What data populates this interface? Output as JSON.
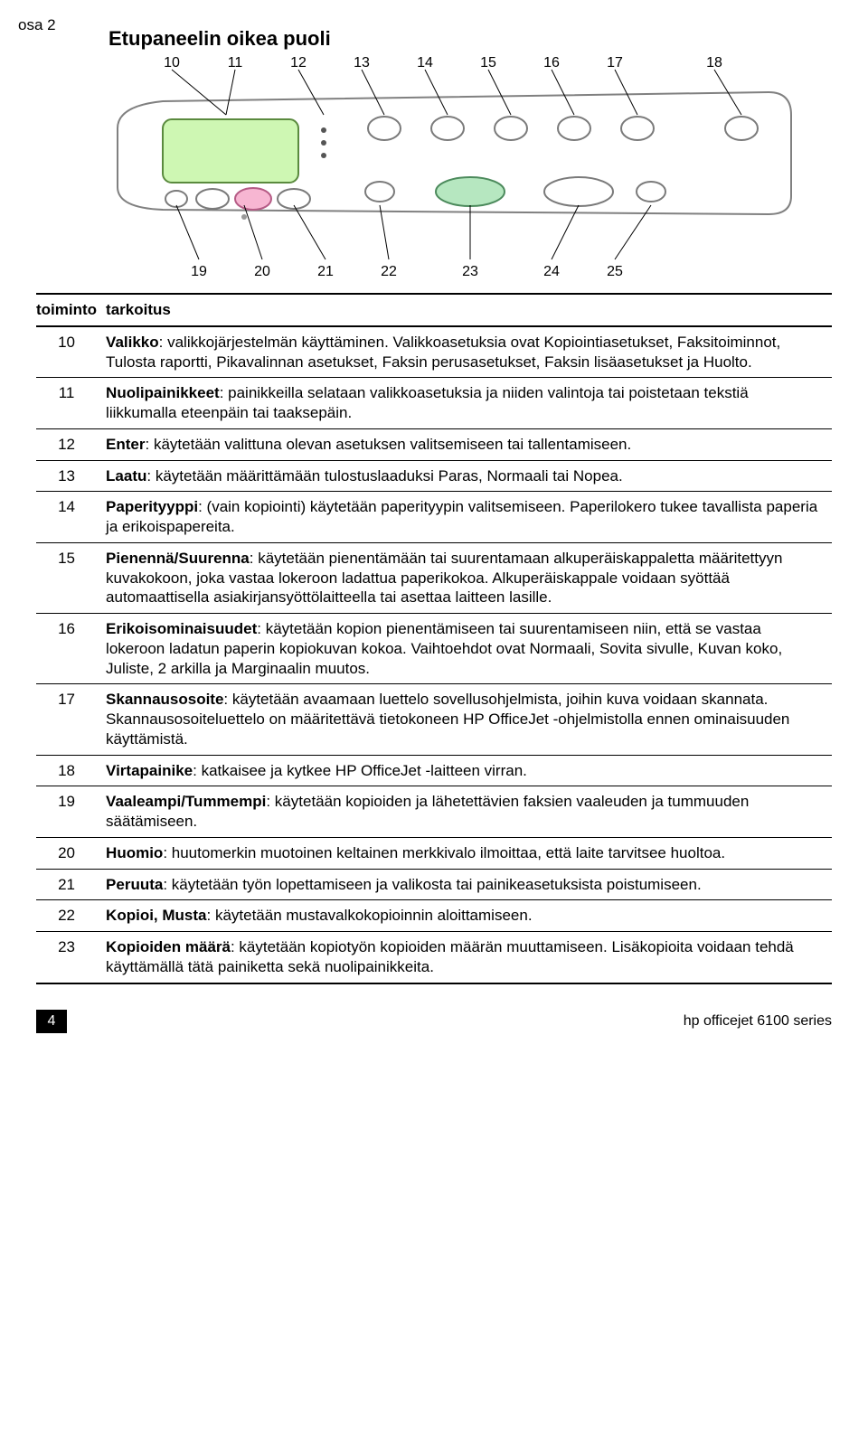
{
  "corner": "osa 2",
  "section_title": "Etupaneelin oikea puoli",
  "diagram": {
    "top_labels": [
      "10",
      "11",
      "12",
      "13",
      "14",
      "15",
      "16",
      "17",
      "18"
    ],
    "bottom_labels": [
      "19",
      "20",
      "21",
      "22",
      "23",
      "24",
      "25"
    ],
    "colors": {
      "screen_fill": "#cef7b3",
      "screen_stroke": "#5a8a3e",
      "pink_btn_fill": "#f7b6d2",
      "pink_btn_stroke": "#b55b85",
      "green_btn_fill": "#b6e7c0",
      "green_btn_stroke": "#4c8a5c",
      "btn_stroke": "#7a7a7a",
      "btn_fill": "#ffffff",
      "panel_stroke": "#808080",
      "line": "#000000"
    }
  },
  "table": {
    "head": {
      "c1": "toiminto",
      "c2": "tarkoitus"
    },
    "rows": [
      {
        "n": "10",
        "term": "Valikko",
        "text": ": valikkojärjestelmän käyttäminen. Valikkoasetuksia ovat Kopiointiasetukset, Faksitoiminnot, Tulosta raportti, Pikavalinnan asetukset, Faksin perusasetukset, Faksin lisäasetukset ja Huolto."
      },
      {
        "n": "11",
        "term": "Nuolipainikkeet",
        "text": ": painikkeilla selataan valikkoasetuksia ja niiden valintoja tai poistetaan tekstiä liikkumalla eteenpäin tai taaksepäin."
      },
      {
        "n": "12",
        "term": "Enter",
        "text": ": käytetään valittuna olevan asetuksen valitsemiseen tai tallentamiseen."
      },
      {
        "n": "13",
        "term": "Laatu",
        "text": ": käytetään määrittämään tulostuslaaduksi Paras, Normaali tai Nopea."
      },
      {
        "n": "14",
        "term": "Paperityyppi",
        "text": ": (vain kopiointi) käytetään paperityypin valitsemiseen. Paperilokero tukee tavallista paperia ja erikoispapereita."
      },
      {
        "n": "15",
        "term": "Pienennä/Suurenna",
        "text": ": käytetään pienentämään tai suurentamaan alkuperäiskappaletta määritettyyn kuvakokoon, joka vastaa lokeroon ladattua paperikokoa. Alkuperäiskappale voidaan syöttää automaattisella asiakirjansyöttölaitteella tai asettaa laitteen lasille."
      },
      {
        "n": "16",
        "term": "Erikoisominaisuudet",
        "text": ": käytetään kopion pienentämiseen tai suurentamiseen niin, että se vastaa lokeroon ladatun paperin kopiokuvan kokoa. Vaihtoehdot ovat Normaali, Sovita sivulle, Kuvan koko, Juliste, 2 arkilla ja Marginaalin muutos."
      },
      {
        "n": "17",
        "term": "Skannausosoite",
        "text": ": käytetään avaamaan luettelo sovellusohjelmista, joihin kuva voidaan skannata. Skannausosoiteluettelo on määritettävä tietokoneen HP OfficeJet -ohjelmistolla ennen ominaisuuden käyttämistä."
      },
      {
        "n": "18",
        "term": "Virtapainike",
        "text": ": katkaisee ja kytkee HP OfficeJet -laitteen virran."
      },
      {
        "n": "19",
        "term": "Vaaleampi/Tummempi",
        "text": ": käytetään kopioiden ja lähetettävien faksien vaaleuden ja tummuuden säätämiseen."
      },
      {
        "n": "20",
        "term": "Huomio",
        "text": ": huutomerkin muotoinen keltainen merkkivalo ilmoittaa, että laite tarvitsee huoltoa."
      },
      {
        "n": "21",
        "term": "Peruuta",
        "text": ": käytetään työn lopettamiseen ja valikosta tai painikeasetuksista poistumiseen."
      },
      {
        "n": "22",
        "term": "Kopioi, Musta",
        "text": ": käytetään mustavalkokopioinnin aloittamiseen."
      },
      {
        "n": "23",
        "term": "Kopioiden määrä",
        "text": ": käytetään kopiotyön kopioiden määrän muuttamiseen. Lisäkopioita voidaan tehdä käyttämällä tätä painiketta sekä nuolipainikkeita."
      }
    ]
  },
  "footer": {
    "page": "4",
    "right": "hp officejet 6100 series"
  }
}
